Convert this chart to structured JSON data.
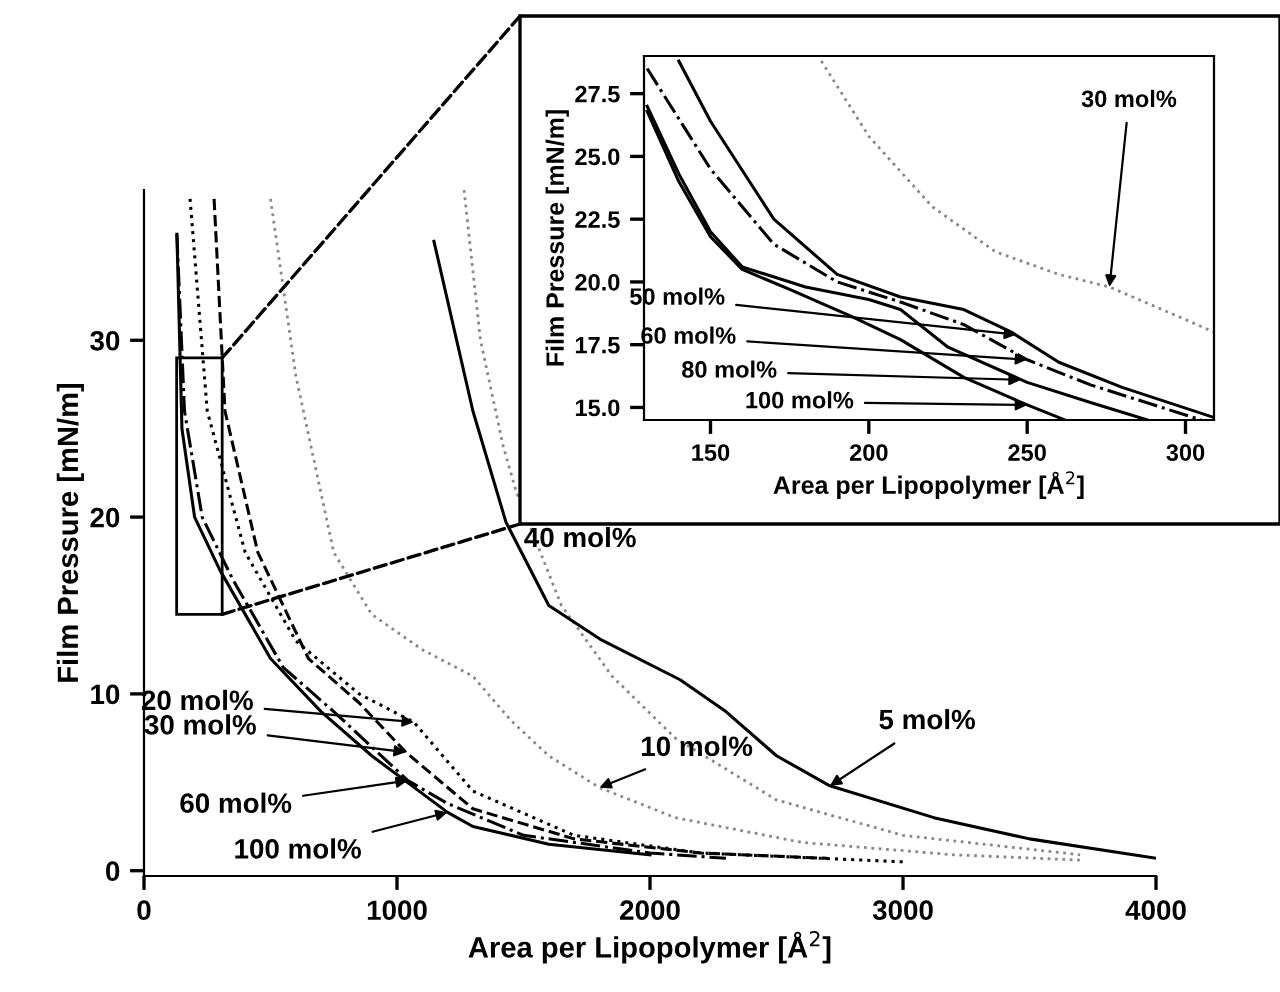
{
  "chart_data": [
    {
      "type": "line",
      "xlabel": "Area per Lipopolymer [Å$^{2}$]",
      "ylabel": "Film Pressure [mN/m]",
      "xlim": [
        0,
        4000
      ],
      "ylim": [
        -0.3,
        38.5
      ],
      "xticks": [
        0,
        1000,
        2000,
        3000,
        4000
      ],
      "yticks": [
        0,
        10,
        20,
        30
      ],
      "grid": false,
      "legend": false,
      "series": [
        {
          "color": "#000000",
          "line_style": "solid",
          "x": [
            130,
            150,
            200,
            300,
            500,
            700,
            900,
            1200,
            1300,
            1600,
            2000
          ],
          "values": [
            36,
            25,
            20,
            17,
            12,
            9,
            6.5,
            3.3,
            2.5,
            1.5,
            0.9
          ]
        },
        {
          "color": "#000000",
          "line_style": "dashdot",
          "x": [
            130,
            160,
            230,
            350,
            550,
            750,
            1043,
            1200,
            1500,
            2000,
            2300
          ],
          "values": [
            36,
            26,
            20,
            16.5,
            11.5,
            9,
            5.1,
            3.8,
            2,
            1.0,
            0.7
          ]
        },
        {
          "color": "#000000",
          "line_style": "dashed",
          "x": [
            277,
            320,
            450,
            650,
            850,
            1035,
            1300,
            1700,
            2200,
            2700
          ],
          "values": [
            38,
            26,
            18,
            12,
            9.5,
            6.7,
            3.5,
            1.8,
            1.0,
            0.7
          ]
        },
        {
          "color": "#000000",
          "line_style": "dotted",
          "x": [
            182,
            250,
            400,
            600,
            850,
            1067,
            1300,
            1700,
            2200,
            3000
          ],
          "values": [
            38,
            26,
            18,
            13,
            10,
            8.4,
            4.5,
            2.0,
            1.0,
            0.5
          ]
        },
        {
          "color": "#888888",
          "line_style": "dotted",
          "x": [
            500,
            600,
            750,
            900,
            1100,
            1300,
            1450,
            1600,
            1800,
            2100,
            2600,
            3200,
            3700
          ],
          "values": [
            38,
            28,
            18,
            14.5,
            12.5,
            11,
            8.5,
            6.5,
            4.7,
            3,
            1.6,
            0.9,
            0.6
          ]
        },
        {
          "color": "#888888",
          "line_style": "dotted",
          "x": [
            1265,
            1330,
            1420,
            1470,
            1650,
            1850,
            2100,
            2500,
            3000,
            3700
          ],
          "values": [
            38.5,
            30,
            24,
            21.5,
            15,
            11,
            7.5,
            4,
            2,
            0.9
          ]
        },
        {
          "color": "#000000",
          "line_style": "solid",
          "x": [
            1146,
            1300,
            1431,
            1600,
            1802,
            2119,
            2300,
            2500,
            2711,
            3122,
            3500,
            4000
          ],
          "values": [
            35.6,
            26,
            19.7,
            15,
            13.1,
            10.8,
            9,
            6.5,
            4.8,
            3.0,
            1.8,
            0.7
          ]
        }
      ],
      "annotations": [
        {
          "text": "20 mol%",
          "x": 1067,
          "y": 8.4
        },
        {
          "text": "30 mol%",
          "x": 1035,
          "y": 6.7
        },
        {
          "text": "60 mol%",
          "x": 1043,
          "y": 5.1
        },
        {
          "text": "100 mol%",
          "x": 1200,
          "y": 3.3
        },
        {
          "text": "10 mol%",
          "x": 1800,
          "y": 4.7
        },
        {
          "text": "5 mol%",
          "x": 2711,
          "y": 4.8
        },
        "40 mol%"
      ]
    },
    {
      "type": "line",
      "xlabel": "Area per Lipopolymer [Å$^{2}$]",
      "ylabel": "Film Pressure [mN/m]",
      "xlim": [
        129,
        309
      ],
      "ylim": [
        14.5,
        29
      ],
      "xticks": [
        150,
        200,
        250,
        300
      ],
      "yticks": [
        {
          "value": 15,
          "label": "15.0"
        },
        {
          "value": 17.5,
          "label": "17.5"
        },
        {
          "value": 20,
          "label": "20.0"
        },
        {
          "value": 22.5,
          "label": "22.5"
        },
        {
          "value": 25,
          "label": "25.0"
        },
        {
          "value": 27.5,
          "label": "27.5"
        }
      ],
      "grid": false,
      "legend": false,
      "series": [
        {
          "color": "#000000",
          "line_style": "solid",
          "x": [
            130,
            140,
            150,
            160,
            175,
            195,
            210,
            230,
            250,
            262
          ],
          "values": [
            26.8,
            24,
            21.8,
            20.5,
            19.7,
            18.6,
            17.7,
            16.2,
            15.1,
            14.5
          ]
        },
        {
          "color": "#000000",
          "line_style": "solid",
          "x": [
            130,
            140,
            150,
            160,
            180,
            200,
            210,
            225,
            250,
            270,
            288
          ],
          "values": [
            27,
            24.3,
            22,
            20.6,
            19.8,
            19.3,
            18.9,
            17.4,
            16,
            15.2,
            14.5
          ]
        },
        {
          "color": "#000000",
          "line_style": "dashdot",
          "x": [
            130,
            150,
            170,
            190,
            210,
            230,
            250,
            270,
            300,
            305
          ],
          "values": [
            28.5,
            24.5,
            21.5,
            20,
            19.2,
            18.3,
            16.9,
            15.9,
            14.7,
            14.5
          ]
        },
        {
          "color": "#000000",
          "line_style": "solid",
          "x": [
            140,
            150,
            170,
            190,
            210,
            230,
            245,
            260,
            280,
            309
          ],
          "values": [
            28.8,
            26.4,
            22.5,
            20.3,
            19.4,
            18.9,
            18,
            16.8,
            15.8,
            14.6
          ]
        },
        {
          "color": "#888888",
          "line_style": "dotted",
          "x": [
            185,
            200,
            220,
            240,
            260,
            276,
            300,
            309
          ],
          "values": [
            28.8,
            25.8,
            23,
            21.2,
            20.3,
            19.8,
            18.5,
            18.0
          ]
        }
      ],
      "annotations": [
        {
          "text": "50 mol%",
          "x": 246.5,
          "y": 17.9
        },
        {
          "text": "60 mol%",
          "x": 250,
          "y": 16.9
        },
        {
          "text": "80 mol%",
          "x": 248,
          "y": 16.1
        },
        {
          "text": "100 mol%",
          "x": 250,
          "y": 15.1
        },
        {
          "text": "30 mol%",
          "x": 276,
          "y": 19.8
        }
      ]
    }
  ]
}
